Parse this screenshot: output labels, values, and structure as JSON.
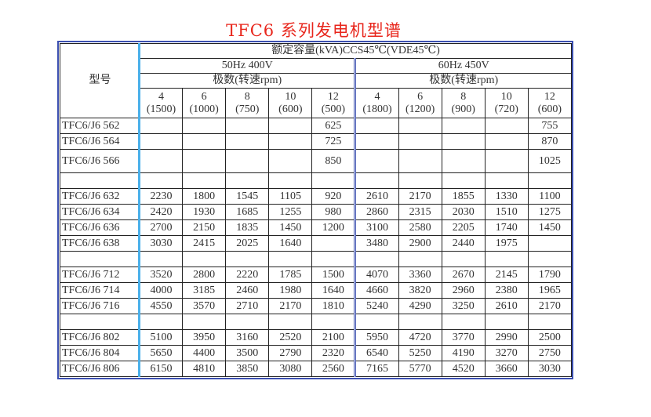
{
  "title": "TFC6 系列发电机型谱",
  "header": {
    "model_label": "型号",
    "capacity_label": "额定容量(kVA)CCS45℃(VDE45℃)",
    "group_50": "50Hz 400V",
    "group_60": "60Hz 450V",
    "poles_label_50": "极数(转速rpm)",
    "poles_label_60": "极数(转速rpm)",
    "poles_50": [
      {
        "p": "4",
        "rpm": "(1500)"
      },
      {
        "p": "6",
        "rpm": "(1000)"
      },
      {
        "p": "8",
        "rpm": "(750)"
      },
      {
        "p": "10",
        "rpm": "(600)"
      },
      {
        "p": "12",
        "rpm": "(500)"
      }
    ],
    "poles_60": [
      {
        "p": "4",
        "rpm": "(1800)"
      },
      {
        "p": "6",
        "rpm": "(1200)"
      },
      {
        "p": "8",
        "rpm": "(900)"
      },
      {
        "p": "10",
        "rpm": "(720)"
      },
      {
        "p": "12",
        "rpm": "(600)"
      }
    ]
  },
  "rows": [
    {
      "model": "TFC6/J6 562",
      "v": [
        "",
        "",
        "",
        "",
        "625",
        "",
        "",
        "",
        "",
        "755"
      ]
    },
    {
      "model": "TFC6/J6 564",
      "v": [
        "",
        "",
        "",
        "",
        "725",
        "",
        "",
        "",
        "",
        "870"
      ]
    },
    {
      "model": "TFC6/J6 566",
      "v": [
        "",
        "",
        "",
        "",
        "850",
        "",
        "",
        "",
        "",
        "1025"
      ],
      "tall": true
    },
    {
      "blank": true
    },
    {
      "model": "TFC6/J6 632",
      "v": [
        "2230",
        "1800",
        "1545",
        "1105",
        "920",
        "2610",
        "2170",
        "1855",
        "1330",
        "1100"
      ]
    },
    {
      "model": "TFC6/J6 634",
      "v": [
        "2420",
        "1930",
        "1685",
        "1255",
        "980",
        "2860",
        "2315",
        "2030",
        "1510",
        "1275"
      ]
    },
    {
      "model": "TFC6/J6 636",
      "v": [
        "2700",
        "2150",
        "1835",
        "1450",
        "1200",
        "3100",
        "2580",
        "2205",
        "1740",
        "1450"
      ]
    },
    {
      "model": "TFC6/J6 638",
      "v": [
        "3030",
        "2415",
        "2025",
        "1640",
        "",
        "3480",
        "2900",
        "2440",
        "1975",
        ""
      ]
    },
    {
      "blank": true
    },
    {
      "model": "TFC6/J6 712",
      "v": [
        "3520",
        "2800",
        "2220",
        "1785",
        "1500",
        "4070",
        "3360",
        "2670",
        "2145",
        "1790"
      ]
    },
    {
      "model": "TFC6/J6 714",
      "v": [
        "4000",
        "3185",
        "2460",
        "1980",
        "1640",
        "4660",
        "3820",
        "2960",
        "2380",
        "1965"
      ]
    },
    {
      "model": "TFC6/J6 716",
      "v": [
        "4550",
        "3570",
        "2710",
        "2170",
        "1810",
        "5240",
        "4290",
        "3250",
        "2610",
        "2170"
      ]
    },
    {
      "blank": true
    },
    {
      "model": "TFC6/J6 802",
      "v": [
        "5100",
        "3950",
        "3160",
        "2520",
        "2100",
        "5950",
        "4720",
        "3770",
        "2990",
        "2500"
      ]
    },
    {
      "model": "TFC6/J6 804",
      "v": [
        "5650",
        "4400",
        "3500",
        "2790",
        "2320",
        "6540",
        "5250",
        "4190",
        "3270",
        "2750"
      ]
    },
    {
      "model": "TFC6/J6 806",
      "v": [
        "6150",
        "4810",
        "3850",
        "3080",
        "2560",
        "7165",
        "5770",
        "4520",
        "3660",
        "3030"
      ]
    }
  ],
  "colors": {
    "title": "#e8261c",
    "frame": "#3b4fb0",
    "model_divider": "#4ab0ea"
  }
}
